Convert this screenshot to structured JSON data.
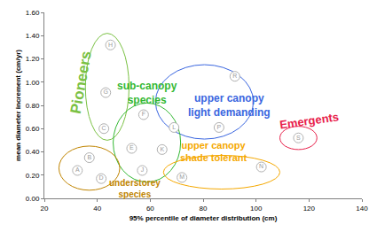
{
  "chart_data": {
    "type": "scatter",
    "x_label": "95% percentile of diameter distribution (cm)",
    "y_label": "mean diameter increment (cm/yr)",
    "xlim": [
      20,
      140
    ],
    "xticks": [
      20,
      40,
      60,
      80,
      100,
      120,
      140
    ],
    "ylim": [
      0,
      1.6
    ],
    "yticks": [
      {
        "value": 0,
        "label": "0.00"
      },
      {
        "value": 0.2,
        "label": "0.20"
      },
      {
        "value": 0.4,
        "label": "0.40"
      },
      {
        "value": 0.6,
        "label": "0.60"
      },
      {
        "value": 0.8,
        "label": "0.80"
      },
      {
        "value": 1.0,
        "label": "1.00"
      },
      {
        "value": 1.2,
        "label": "1.20"
      },
      {
        "value": 1.4,
        "label": "1.40"
      },
      {
        "value": 1.6,
        "label": "1.60"
      }
    ],
    "grid": false,
    "marker": "circle",
    "series": [
      {
        "name": "Pioneers",
        "color": "#7ac143",
        "x": [
          45,
          43.2,
          42.5
        ],
        "values": [
          1.32,
          0.91,
          0.6
        ],
        "point_labels": [
          "H",
          "G",
          "C"
        ]
      },
      {
        "name": "upper canopy\nlight demanding",
        "color": "#3a66e0",
        "x": [
          92,
          86,
          69
        ],
        "values": [
          1.05,
          0.61,
          0.61
        ],
        "point_labels": [
          "R",
          "P",
          "L"
        ]
      },
      {
        "name": "Emergents",
        "color": "#e8204a",
        "x": [
          116
        ],
        "values": [
          0.52
        ],
        "point_labels": [
          "S"
        ]
      },
      {
        "name": "sub-canopy\nspecies",
        "color": "#33b833",
        "x": [
          57.5,
          53,
          64.5,
          57
        ],
        "values": [
          0.72,
          0.43,
          0.42,
          0.24
        ],
        "point_labels": [
          "F",
          "E",
          "K",
          "J"
        ]
      },
      {
        "name": "upper canopy\nshade tolerant",
        "color": "#f5a800",
        "x": [
          72,
          102
        ],
        "values": [
          0.18,
          0.27
        ],
        "point_labels": [
          "M",
          "N"
        ]
      },
      {
        "name": "understorey\nspecies",
        "color": "#c08400",
        "x": [
          32.5,
          37,
          41.5
        ],
        "values": [
          0.24,
          0.35,
          0.17
        ],
        "point_labels": [
          "A",
          "B",
          "D"
        ]
      }
    ]
  }
}
